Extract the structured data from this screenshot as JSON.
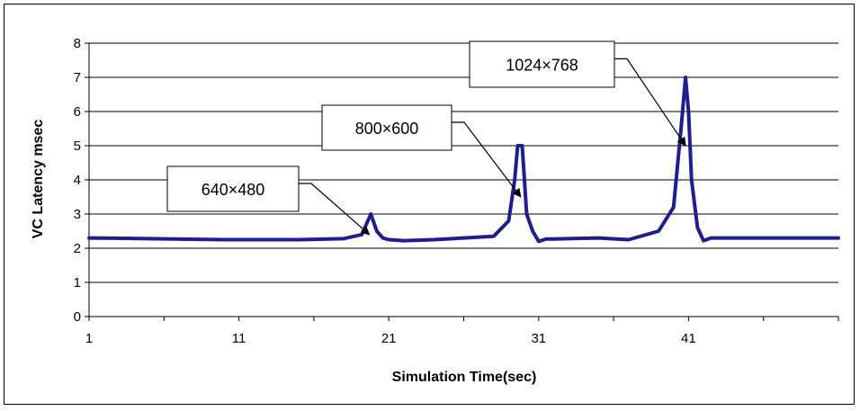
{
  "chart_data": {
    "type": "line",
    "title": "",
    "xlabel": "Simulation Time(sec)",
    "ylabel": "VC Latency msec",
    "xlim": [
      1,
      51
    ],
    "ylim": [
      0,
      8
    ],
    "x_ticks": [
      "1",
      "11",
      "21",
      "31",
      "41"
    ],
    "y_ticks": [
      "0",
      "1",
      "2",
      "3",
      "4",
      "5",
      "6",
      "7",
      "8"
    ],
    "grid": "horizontal",
    "legend": "none",
    "line_color": "#1f1f8c",
    "series": [
      {
        "x": [
          1,
          5,
          10,
          15,
          18,
          19.2,
          19.8,
          20.2,
          20.6,
          21,
          22,
          24,
          26,
          28,
          29,
          29.4,
          29.6,
          29.9,
          30.2,
          30.6,
          31,
          31.5,
          32,
          35,
          37,
          39,
          40,
          40.5,
          40.8,
          41,
          41.2,
          41.6,
          42,
          42.5,
          45,
          51
        ],
        "y": [
          2.3,
          2.28,
          2.25,
          2.25,
          2.28,
          2.4,
          3.0,
          2.5,
          2.3,
          2.25,
          2.22,
          2.25,
          2.3,
          2.35,
          2.8,
          4.0,
          5.0,
          5.0,
          3.0,
          2.5,
          2.2,
          2.27,
          2.27,
          2.3,
          2.25,
          2.5,
          3.2,
          5.5,
          7.0,
          6.0,
          4.0,
          2.6,
          2.22,
          2.3,
          2.3,
          2.3
        ]
      }
    ],
    "annotations": [
      {
        "text": "640×480",
        "x": 19.7,
        "y": 2.4
      },
      {
        "text": "800×600",
        "x": 29.8,
        "y": 3.5
      },
      {
        "text": "1024×768",
        "x": 40.8,
        "y": 5.0
      }
    ]
  }
}
